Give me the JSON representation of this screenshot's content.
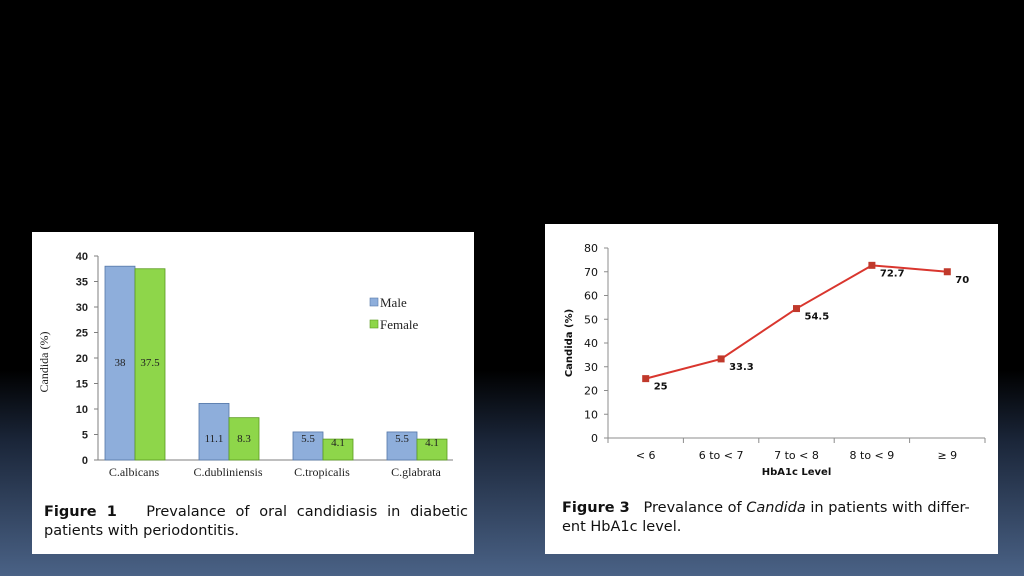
{
  "chart_data": [
    {
      "type": "bar",
      "categories": [
        "C.albicans",
        "C.dubliniensis",
        "C.tropicalis",
        "C.glabrata"
      ],
      "series": [
        {
          "name": "Male",
          "values": [
            38,
            11.1,
            5.5,
            5.5
          ],
          "color": "#8eaedb",
          "labels": [
            "38",
            "11.1",
            "5.5",
            "5.5"
          ]
        },
        {
          "name": "Female",
          "values": [
            37.5,
            8.3,
            4.1,
            4.1
          ],
          "color": "#8ed64a",
          "labels": [
            "37.5",
            "8.3",
            "4.1",
            "4.1"
          ]
        }
      ],
      "ylabel": "Candida (%)",
      "ylim": [
        0,
        40
      ],
      "yticks": [
        "0",
        "5",
        "10",
        "15",
        "20",
        "25",
        "30",
        "35",
        "40"
      ],
      "grid": false,
      "legend": "right",
      "caption": {
        "label": "Figure 1",
        "text": "Prevalance of oral candidiasis in diabetic patients with periodontitis."
      }
    },
    {
      "type": "line",
      "categories": [
        "< 6",
        "6 to < 7",
        "7 to < 8",
        "8 to < 9",
        "≥ 9"
      ],
      "series": [
        {
          "values": [
            25,
            33.3,
            54.5,
            72.7,
            70
          ],
          "color": "#d9362e",
          "labels": [
            "25",
            "33.3",
            "54.5",
            "72.7",
            "70"
          ]
        }
      ],
      "xlabel": "HbA1c Level",
      "ylabel": "Candida (%)",
      "ylim": [
        0,
        80
      ],
      "yticks": [
        "0",
        "10",
        "20",
        "30",
        "40",
        "50",
        "60",
        "70",
        "80"
      ],
      "grid": false,
      "caption": {
        "label": "Figure 3",
        "text_before": "Prevalance of",
        "text_italic": "Candida",
        "text_after": "in patients with differ-ent HbA1c level."
      }
    }
  ]
}
